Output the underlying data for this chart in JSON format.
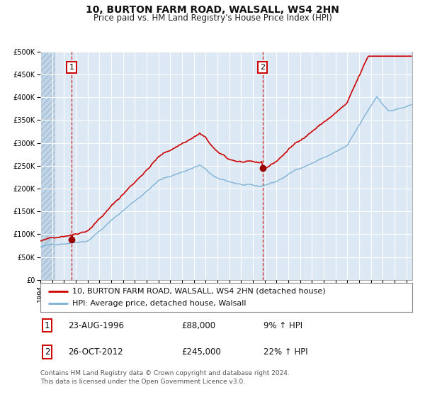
{
  "title": "10, BURTON FARM ROAD, WALSALL, WS4 2HN",
  "subtitle": "Price paid vs. HM Land Registry's House Price Index (HPI)",
  "legend_property": "10, BURTON FARM ROAD, WALSALL, WS4 2HN (detached house)",
  "legend_hpi": "HPI: Average price, detached house, Walsall",
  "footnote": "Contains HM Land Registry data © Crown copyright and database right 2024.\nThis data is licensed under the Open Government Licence v3.0.",
  "annotation1": {
    "label": "1",
    "date_str": "23-AUG-1996",
    "price": 88000,
    "pct": "9% ↑ HPI",
    "x_year": 1996.64
  },
  "annotation2": {
    "label": "2",
    "date_str": "26-OCT-2012",
    "price": 245000,
    "pct": "22% ↑ HPI",
    "x_year": 2012.82
  },
  "ylim": [
    0,
    500000
  ],
  "yticks": [
    0,
    50000,
    100000,
    150000,
    200000,
    250000,
    300000,
    350000,
    400000,
    450000,
    500000
  ],
  "xlim_start": 1994.0,
  "xlim_end": 2025.5,
  "bg_color": "#dce9f5",
  "hatch_color": "#b8cfe0",
  "line_color_property": "#cc0000",
  "line_color_hpi": "#7aafd4",
  "dot_color": "#990000",
  "vline_color": "#cc0000",
  "grid_color": "#ffffff",
  "border_color": "#aaaaaa",
  "title_fontsize": 10,
  "subtitle_fontsize": 8.5,
  "tick_fontsize": 7,
  "legend_fontsize": 8,
  "ann_fontsize": 8.5,
  "footnote_fontsize": 6.5
}
